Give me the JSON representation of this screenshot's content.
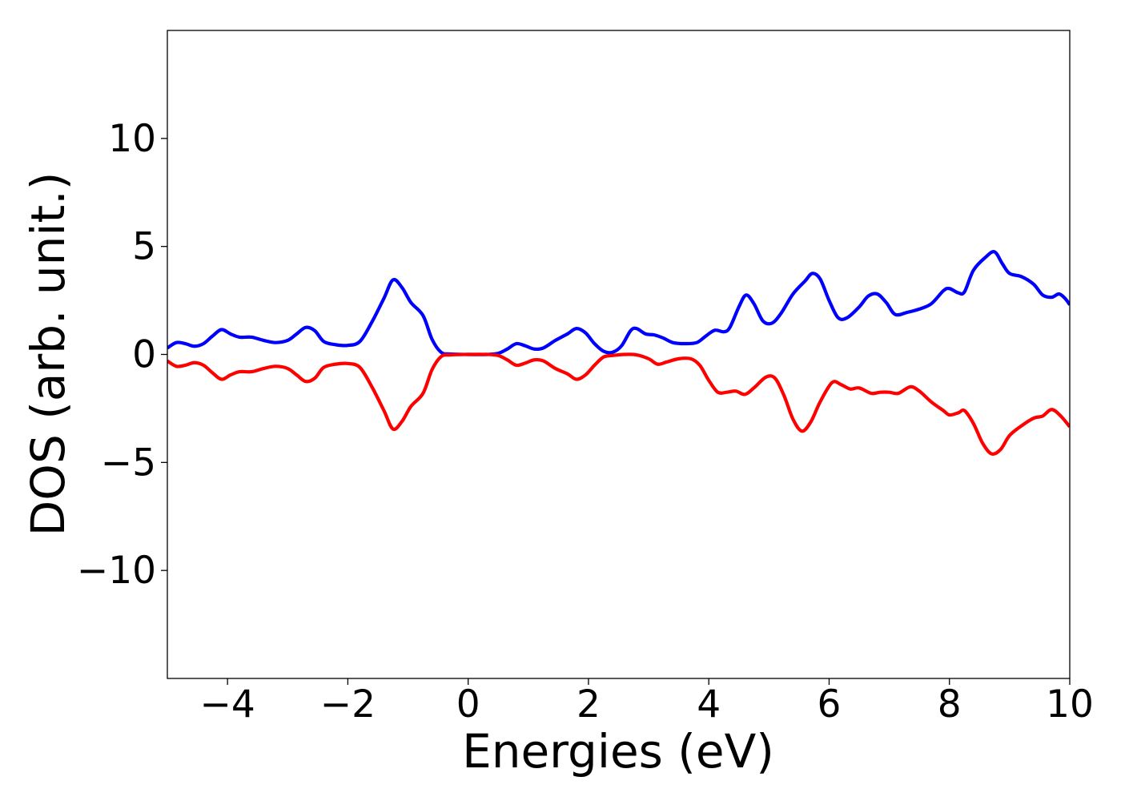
{
  "chart_data": {
    "type": "line",
    "title": "",
    "xlabel": "Energies (eV)",
    "ylabel": "DOS (arb. unit.)",
    "xlim": [
      -5,
      10
    ],
    "ylim": [
      -15,
      15
    ],
    "xticks": [
      {
        "value": -4,
        "label": "−4"
      },
      {
        "value": -2,
        "label": "−2"
      },
      {
        "value": 0,
        "label": "0"
      },
      {
        "value": 2,
        "label": "2"
      },
      {
        "value": 4,
        "label": "4"
      },
      {
        "value": 6,
        "label": "6"
      },
      {
        "value": 8,
        "label": "8"
      },
      {
        "value": 10,
        "label": "10"
      }
    ],
    "yticks": [
      {
        "value": -10,
        "label": "−10"
      },
      {
        "value": -5,
        "label": "−5"
      },
      {
        "value": 0,
        "label": "0"
      },
      {
        "value": 5,
        "label": "5"
      },
      {
        "value": 10,
        "label": "10"
      }
    ],
    "grid": false,
    "legend": false,
    "series": [
      {
        "color": "#0000ff",
        "points": [
          [
            -5.0,
            0.3
          ],
          [
            -4.85,
            0.55
          ],
          [
            -4.7,
            0.5
          ],
          [
            -4.55,
            0.38
          ],
          [
            -4.4,
            0.5
          ],
          [
            -4.25,
            0.85
          ],
          [
            -4.1,
            1.15
          ],
          [
            -3.95,
            0.95
          ],
          [
            -3.8,
            0.8
          ],
          [
            -3.6,
            0.8
          ],
          [
            -3.4,
            0.65
          ],
          [
            -3.2,
            0.55
          ],
          [
            -3.0,
            0.65
          ],
          [
            -2.85,
            0.95
          ],
          [
            -2.7,
            1.25
          ],
          [
            -2.55,
            1.1
          ],
          [
            -2.4,
            0.6
          ],
          [
            -2.2,
            0.45
          ],
          [
            -2.0,
            0.42
          ],
          [
            -1.8,
            0.6
          ],
          [
            -1.6,
            1.5
          ],
          [
            -1.4,
            2.6
          ],
          [
            -1.25,
            3.45
          ],
          [
            -1.1,
            3.1
          ],
          [
            -0.95,
            2.4
          ],
          [
            -0.75,
            1.8
          ],
          [
            -0.6,
            0.7
          ],
          [
            -0.45,
            0.1
          ],
          [
            -0.3,
            0.02
          ],
          [
            0.0,
            0.0
          ],
          [
            0.3,
            0.0
          ],
          [
            0.5,
            0.05
          ],
          [
            0.65,
            0.25
          ],
          [
            0.8,
            0.5
          ],
          [
            0.95,
            0.4
          ],
          [
            1.1,
            0.25
          ],
          [
            1.25,
            0.3
          ],
          [
            1.45,
            0.65
          ],
          [
            1.65,
            0.95
          ],
          [
            1.8,
            1.2
          ],
          [
            1.95,
            1.0
          ],
          [
            2.1,
            0.5
          ],
          [
            2.25,
            0.15
          ],
          [
            2.4,
            0.1
          ],
          [
            2.55,
            0.4
          ],
          [
            2.7,
            1.1
          ],
          [
            2.8,
            1.2
          ],
          [
            2.95,
            0.95
          ],
          [
            3.1,
            0.9
          ],
          [
            3.25,
            0.75
          ],
          [
            3.4,
            0.55
          ],
          [
            3.6,
            0.5
          ],
          [
            3.8,
            0.55
          ],
          [
            3.95,
            0.85
          ],
          [
            4.1,
            1.12
          ],
          [
            4.25,
            1.05
          ],
          [
            4.35,
            1.25
          ],
          [
            4.5,
            2.2
          ],
          [
            4.62,
            2.75
          ],
          [
            4.75,
            2.35
          ],
          [
            4.9,
            1.55
          ],
          [
            5.05,
            1.45
          ],
          [
            5.2,
            1.9
          ],
          [
            5.4,
            2.8
          ],
          [
            5.6,
            3.4
          ],
          [
            5.72,
            3.75
          ],
          [
            5.85,
            3.5
          ],
          [
            6.0,
            2.5
          ],
          [
            6.15,
            1.7
          ],
          [
            6.3,
            1.7
          ],
          [
            6.5,
            2.2
          ],
          [
            6.65,
            2.7
          ],
          [
            6.8,
            2.8
          ],
          [
            6.95,
            2.4
          ],
          [
            7.1,
            1.85
          ],
          [
            7.3,
            1.95
          ],
          [
            7.5,
            2.1
          ],
          [
            7.7,
            2.35
          ],
          [
            7.9,
            2.95
          ],
          [
            8.0,
            3.05
          ],
          [
            8.15,
            2.85
          ],
          [
            8.25,
            2.9
          ],
          [
            8.4,
            3.9
          ],
          [
            8.6,
            4.5
          ],
          [
            8.75,
            4.75
          ],
          [
            8.88,
            4.2
          ],
          [
            9.0,
            3.75
          ],
          [
            9.2,
            3.6
          ],
          [
            9.4,
            3.25
          ],
          [
            9.55,
            2.75
          ],
          [
            9.7,
            2.65
          ],
          [
            9.82,
            2.8
          ],
          [
            9.92,
            2.6
          ],
          [
            10.0,
            2.3
          ]
        ]
      },
      {
        "color": "#ff0000",
        "points": [
          [
            -5.0,
            -0.3
          ],
          [
            -4.85,
            -0.55
          ],
          [
            -4.7,
            -0.5
          ],
          [
            -4.55,
            -0.38
          ],
          [
            -4.4,
            -0.5
          ],
          [
            -4.25,
            -0.85
          ],
          [
            -4.1,
            -1.15
          ],
          [
            -3.95,
            -0.95
          ],
          [
            -3.8,
            -0.8
          ],
          [
            -3.6,
            -0.8
          ],
          [
            -3.4,
            -0.65
          ],
          [
            -3.2,
            -0.55
          ],
          [
            -3.0,
            -0.65
          ],
          [
            -2.85,
            -0.95
          ],
          [
            -2.7,
            -1.25
          ],
          [
            -2.55,
            -1.1
          ],
          [
            -2.4,
            -0.6
          ],
          [
            -2.2,
            -0.45
          ],
          [
            -2.0,
            -0.42
          ],
          [
            -1.8,
            -0.6
          ],
          [
            -1.6,
            -1.5
          ],
          [
            -1.4,
            -2.6
          ],
          [
            -1.25,
            -3.45
          ],
          [
            -1.1,
            -3.1
          ],
          [
            -0.95,
            -2.4
          ],
          [
            -0.75,
            -1.8
          ],
          [
            -0.6,
            -0.7
          ],
          [
            -0.45,
            -0.1
          ],
          [
            -0.3,
            -0.02
          ],
          [
            0.0,
            0.0
          ],
          [
            0.3,
            0.0
          ],
          [
            0.5,
            -0.05
          ],
          [
            0.65,
            -0.25
          ],
          [
            0.8,
            -0.5
          ],
          [
            0.95,
            -0.4
          ],
          [
            1.1,
            -0.25
          ],
          [
            1.25,
            -0.3
          ],
          [
            1.45,
            -0.65
          ],
          [
            1.65,
            -0.9
          ],
          [
            1.8,
            -1.15
          ],
          [
            1.95,
            -0.95
          ],
          [
            2.1,
            -0.5
          ],
          [
            2.25,
            -0.12
          ],
          [
            2.4,
            -0.05
          ],
          [
            2.6,
            0.0
          ],
          [
            2.8,
            -0.02
          ],
          [
            3.0,
            -0.2
          ],
          [
            3.15,
            -0.45
          ],
          [
            3.3,
            -0.35
          ],
          [
            3.5,
            -0.2
          ],
          [
            3.7,
            -0.2
          ],
          [
            3.85,
            -0.5
          ],
          [
            4.0,
            -1.2
          ],
          [
            4.15,
            -1.75
          ],
          [
            4.3,
            -1.75
          ],
          [
            4.45,
            -1.7
          ],
          [
            4.6,
            -1.85
          ],
          [
            4.75,
            -1.55
          ],
          [
            4.95,
            -1.05
          ],
          [
            5.1,
            -1.1
          ],
          [
            5.25,
            -1.9
          ],
          [
            5.4,
            -3.0
          ],
          [
            5.55,
            -3.55
          ],
          [
            5.7,
            -3.1
          ],
          [
            5.85,
            -2.2
          ],
          [
            6.05,
            -1.3
          ],
          [
            6.2,
            -1.4
          ],
          [
            6.35,
            -1.6
          ],
          [
            6.5,
            -1.55
          ],
          [
            6.7,
            -1.8
          ],
          [
            6.85,
            -1.75
          ],
          [
            7.0,
            -1.75
          ],
          [
            7.15,
            -1.8
          ],
          [
            7.35,
            -1.5
          ],
          [
            7.5,
            -1.7
          ],
          [
            7.7,
            -2.2
          ],
          [
            7.9,
            -2.6
          ],
          [
            8.0,
            -2.8
          ],
          [
            8.15,
            -2.7
          ],
          [
            8.25,
            -2.6
          ],
          [
            8.4,
            -3.2
          ],
          [
            8.55,
            -4.1
          ],
          [
            8.7,
            -4.6
          ],
          [
            8.85,
            -4.4
          ],
          [
            9.0,
            -3.75
          ],
          [
            9.2,
            -3.3
          ],
          [
            9.4,
            -2.95
          ],
          [
            9.55,
            -2.85
          ],
          [
            9.7,
            -2.55
          ],
          [
            9.85,
            -2.85
          ],
          [
            10.0,
            -3.35
          ]
        ]
      }
    ]
  }
}
